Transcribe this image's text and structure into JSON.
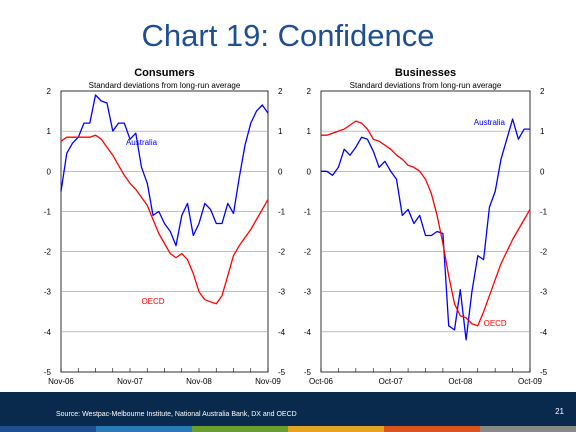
{
  "slide": {
    "title": "Chart 19: Confidence",
    "source": "Source: Westpac-Melbourne Institute, National Australia Bank, DX and OECD",
    "page_number": "21"
  },
  "colors": {
    "title": "#1d4f91",
    "australia": "#0000ff",
    "oecd": "#ff0000",
    "footer": "#0a2a4d",
    "stripe": [
      "#1d4f91",
      "#2a7ab8",
      "#6a9e2e",
      "#e6a323",
      "#d9541e",
      "#8a8a8a"
    ]
  },
  "chart_data": [
    {
      "type": "line",
      "title": "Consumers",
      "subtitle": "Standard deviations from long-run average",
      "ylim": [
        -5,
        2
      ],
      "yticks": [
        "2",
        "1",
        "0",
        "-1",
        "-2",
        "-3",
        "-4",
        "-5"
      ],
      "xlim": [
        "2006-11",
        "2009-11"
      ],
      "xticks": [
        "Nov-06",
        "Nov-07",
        "Nov-08",
        "Nov-09"
      ],
      "grid": true,
      "series": [
        {
          "name": "Australia",
          "color": "#0000ff",
          "x": [
            "2006-11",
            "2006-12",
            "2007-01",
            "2007-02",
            "2007-03",
            "2007-04",
            "2007-05",
            "2007-06",
            "2007-07",
            "2007-08",
            "2007-09",
            "2007-10",
            "2007-11",
            "2007-12",
            "2008-01",
            "2008-02",
            "2008-03",
            "2008-04",
            "2008-05",
            "2008-06",
            "2008-07",
            "2008-08",
            "2008-09",
            "2008-10",
            "2008-11",
            "2008-12",
            "2009-01",
            "2009-02",
            "2009-03",
            "2009-04",
            "2009-05",
            "2009-06",
            "2009-07",
            "2009-08",
            "2009-09",
            "2009-10",
            "2009-11"
          ],
          "values": [
            -0.5,
            0.45,
            0.7,
            0.85,
            1.2,
            1.2,
            1.9,
            1.75,
            1.7,
            1.0,
            1.2,
            1.2,
            0.8,
            0.95,
            0.1,
            -0.3,
            -1.1,
            -1.0,
            -1.3,
            -1.5,
            -1.85,
            -1.1,
            -0.8,
            -1.6,
            -1.3,
            -0.8,
            -0.95,
            -1.3,
            -1.3,
            -0.8,
            -1.05,
            -0.15,
            0.65,
            1.2,
            1.5,
            1.65,
            1.45
          ]
        },
        {
          "name": "OECD",
          "color": "#ff0000",
          "x": [
            "2006-11",
            "2006-12",
            "2007-01",
            "2007-02",
            "2007-03",
            "2007-04",
            "2007-05",
            "2007-06",
            "2007-07",
            "2007-08",
            "2007-09",
            "2007-10",
            "2007-11",
            "2007-12",
            "2008-01",
            "2008-02",
            "2008-03",
            "2008-04",
            "2008-05",
            "2008-06",
            "2008-07",
            "2008-08",
            "2008-09",
            "2008-10",
            "2008-11",
            "2008-12",
            "2009-01",
            "2009-02",
            "2009-03",
            "2009-04",
            "2009-05",
            "2009-06",
            "2009-07",
            "2009-08",
            "2009-09",
            "2009-10",
            "2009-11"
          ],
          "values": [
            0.75,
            0.85,
            0.85,
            0.85,
            0.85,
            0.85,
            0.9,
            0.8,
            0.6,
            0.4,
            0.15,
            -0.1,
            -0.3,
            -0.45,
            -0.65,
            -0.85,
            -1.2,
            -1.55,
            -1.8,
            -2.05,
            -2.15,
            -2.05,
            -2.2,
            -2.55,
            -3.0,
            -3.2,
            -3.25,
            -3.3,
            -3.1,
            -2.6,
            -2.1,
            -1.85,
            -1.65,
            -1.45,
            -1.2,
            -0.95,
            -0.7
          ]
        }
      ],
      "annotations": [
        {
          "text": "Australia",
          "x": "2008-01",
          "y": 0.65,
          "color": "#0000ff"
        },
        {
          "text": "OECD",
          "x": "2008-03",
          "y": -3.3,
          "color": "#ff0000"
        }
      ]
    },
    {
      "type": "line",
      "title": "Businesses",
      "subtitle": "Standard deviations from long-run average",
      "ylim": [
        -5,
        2
      ],
      "yticks": [
        "2",
        "1",
        "0",
        "-1",
        "-2",
        "-3",
        "-4",
        "-5"
      ],
      "xlim": [
        "2006-10",
        "2009-10"
      ],
      "xticks": [
        "Oct-06",
        "Oct-07",
        "Oct-08",
        "Oct-09"
      ],
      "grid": true,
      "series": [
        {
          "name": "Australia",
          "color": "#0000ff",
          "x": [
            "2006-10",
            "2006-11",
            "2006-12",
            "2007-01",
            "2007-02",
            "2007-03",
            "2007-04",
            "2007-05",
            "2007-06",
            "2007-07",
            "2007-08",
            "2007-09",
            "2007-10",
            "2007-11",
            "2007-12",
            "2008-01",
            "2008-02",
            "2008-03",
            "2008-04",
            "2008-05",
            "2008-06",
            "2008-07",
            "2008-08",
            "2008-09",
            "2008-10",
            "2008-11",
            "2008-12",
            "2009-01",
            "2009-02",
            "2009-03",
            "2009-04",
            "2009-05",
            "2009-06",
            "2009-07",
            "2009-08",
            "2009-09",
            "2009-10"
          ],
          "values": [
            0.0,
            0.0,
            -0.1,
            0.1,
            0.55,
            0.4,
            0.6,
            0.85,
            0.8,
            0.5,
            0.1,
            0.25,
            0.0,
            -0.2,
            -1.1,
            -0.95,
            -1.3,
            -1.1,
            -1.6,
            -1.6,
            -1.5,
            -1.55,
            -3.85,
            -3.95,
            -2.95,
            -4.2,
            -3.0,
            -2.1,
            -2.2,
            -0.9,
            -0.5,
            0.3,
            0.8,
            1.3,
            0.8,
            1.05,
            1.05
          ]
        },
        {
          "name": "OECD",
          "color": "#ff0000",
          "x": [
            "2006-10",
            "2006-11",
            "2006-12",
            "2007-01",
            "2007-02",
            "2007-03",
            "2007-04",
            "2007-05",
            "2007-06",
            "2007-07",
            "2007-08",
            "2007-09",
            "2007-10",
            "2007-11",
            "2007-12",
            "2008-01",
            "2008-02",
            "2008-03",
            "2008-04",
            "2008-05",
            "2008-06",
            "2008-07",
            "2008-08",
            "2008-09",
            "2008-10",
            "2008-11",
            "2008-12",
            "2009-01",
            "2009-02",
            "2009-03",
            "2009-04",
            "2009-05",
            "2009-06",
            "2009-07",
            "2009-08",
            "2009-09",
            "2009-10"
          ],
          "values": [
            0.9,
            0.9,
            0.95,
            1.0,
            1.05,
            1.15,
            1.25,
            1.2,
            1.05,
            0.8,
            0.75,
            0.65,
            0.55,
            0.4,
            0.3,
            0.15,
            0.1,
            0.0,
            -0.2,
            -0.55,
            -1.1,
            -1.8,
            -2.6,
            -3.3,
            -3.6,
            -3.65,
            -3.8,
            -3.85,
            -3.5,
            -3.1,
            -2.7,
            -2.3,
            -2.0,
            -1.7,
            -1.45,
            -1.2,
            -0.95
          ]
        }
      ],
      "annotations": [
        {
          "text": "Australia",
          "x": "2009-03",
          "y": 1.15,
          "color": "#0000ff"
        },
        {
          "text": "OECD",
          "x": "2009-04",
          "y": -3.85,
          "color": "#ff0000"
        }
      ]
    }
  ]
}
